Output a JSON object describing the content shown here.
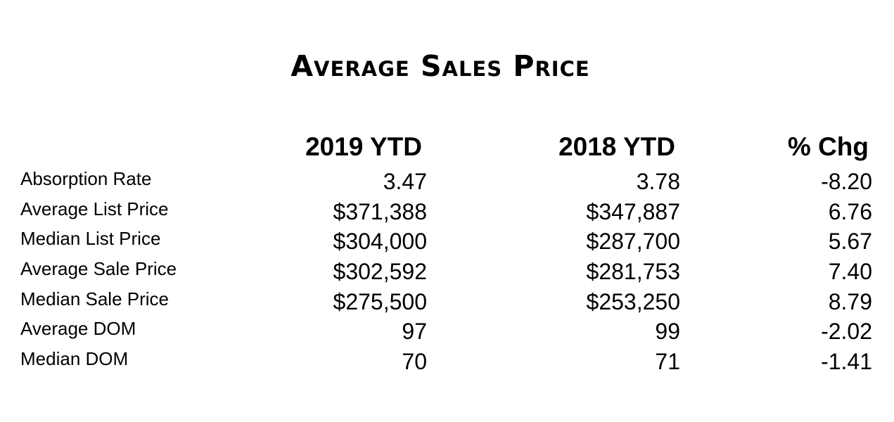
{
  "title": "Average Sales Price",
  "columns": [
    "2019 YTD",
    "2018 YTD",
    "% Chg"
  ],
  "rows": [
    {
      "label": "Absorption Rate",
      "y2019": "3.47",
      "y2018": "3.78",
      "chg": "-8.20"
    },
    {
      "label": "Average List Price",
      "y2019": "$371,388",
      "y2018": "$347,887",
      "chg": "6.76"
    },
    {
      "label": "Median List Price",
      "y2019": "$304,000",
      "y2018": "$287,700",
      "chg": "5.67"
    },
    {
      "label": "Average Sale Price",
      "y2019": "$302,592",
      "y2018": "$281,753",
      "chg": "7.40"
    },
    {
      "label": "Median Sale Price",
      "y2019": "$275,500",
      "y2018": "$253,250",
      "chg": "8.79"
    },
    {
      "label": "Average DOM",
      "y2019": "97",
      "y2018": "99",
      "chg": "-2.02"
    },
    {
      "label": "Median DOM",
      "y2019": "70",
      "y2018": "71",
      "chg": "-1.41"
    }
  ]
}
